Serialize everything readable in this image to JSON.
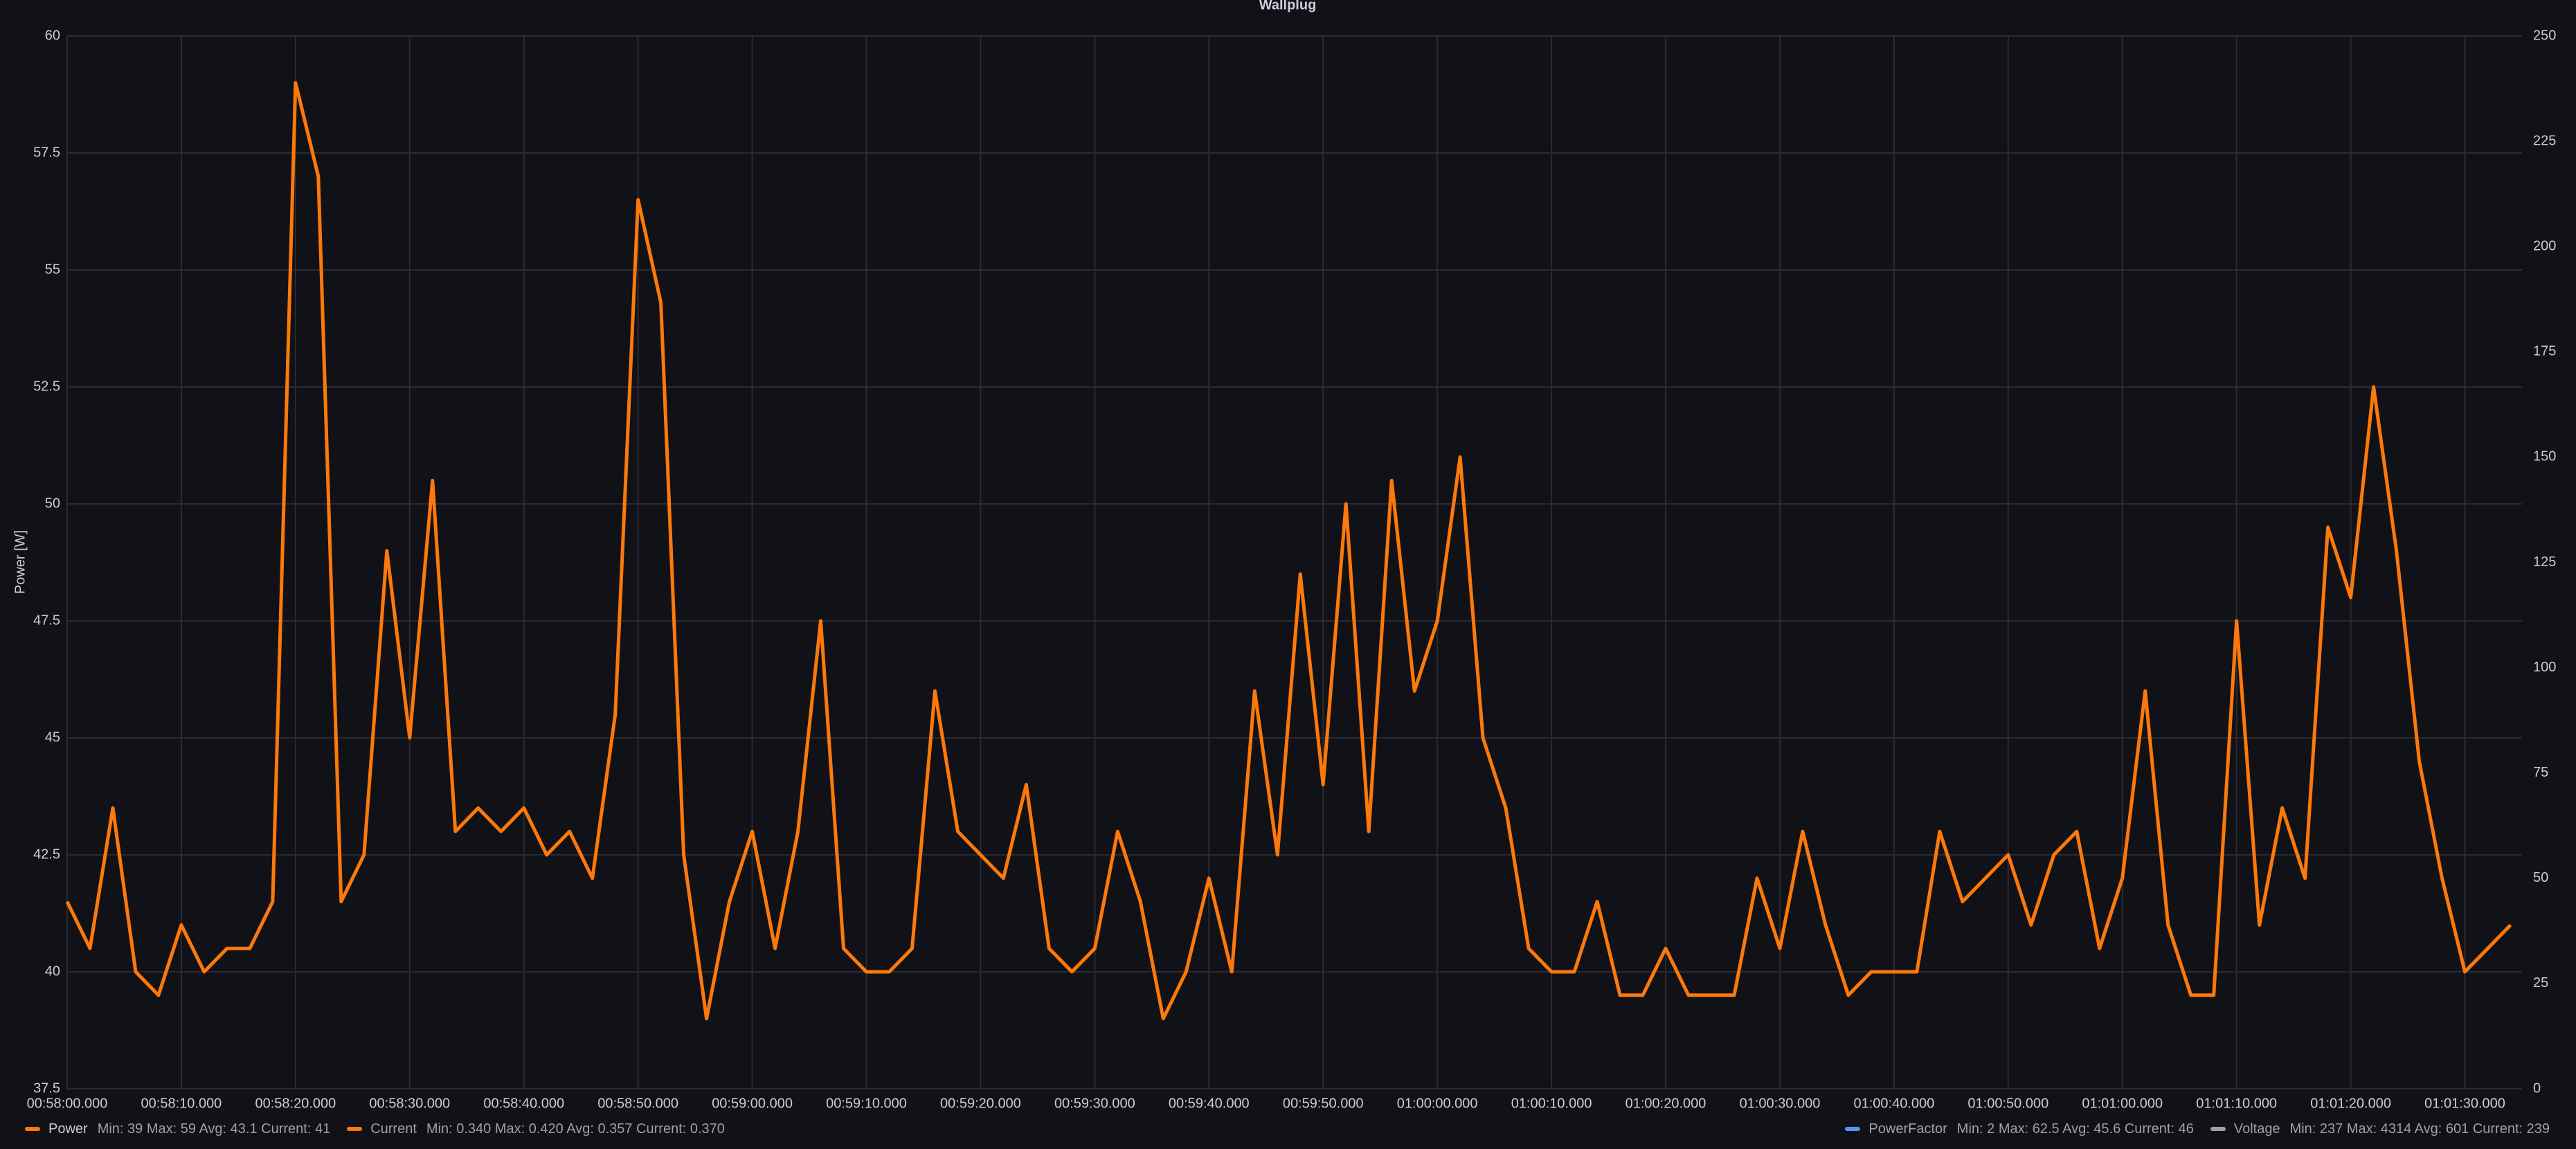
{
  "chart_data": {
    "type": "line",
    "title": "Wallplug",
    "ylabel": "Power [W]",
    "x": [
      "00:58:00.000",
      "00:58:02.000",
      "00:58:04.000",
      "00:58:06.000",
      "00:58:08.000",
      "00:58:10.000",
      "00:58:12.000",
      "00:58:14.000",
      "00:58:16.000",
      "00:58:18.000",
      "00:58:20.000",
      "00:58:22.000",
      "00:58:24.000",
      "00:58:26.000",
      "00:58:28.000",
      "00:58:30.000",
      "00:58:32.000",
      "00:58:34.000",
      "00:58:36.000",
      "00:58:38.000",
      "00:58:40.000",
      "00:58:42.000",
      "00:58:44.000",
      "00:58:46.000",
      "00:58:48.000",
      "00:58:50.000",
      "00:58:52.000",
      "00:58:54.000",
      "00:58:56.000",
      "00:58:58.000",
      "00:59:00.000",
      "00:59:02.000",
      "00:59:04.000",
      "00:59:06.000",
      "00:59:08.000",
      "00:59:10.000",
      "00:59:12.000",
      "00:59:14.000",
      "00:59:16.000",
      "00:59:18.000",
      "00:59:20.000",
      "00:59:22.000",
      "00:59:24.000",
      "00:59:26.000",
      "00:59:28.000",
      "00:59:30.000",
      "00:59:32.000",
      "00:59:34.000",
      "00:59:36.000",
      "00:59:38.000",
      "00:59:40.000",
      "00:59:42.000",
      "00:59:44.000",
      "00:59:46.000",
      "00:59:48.000",
      "00:59:50.000",
      "00:59:52.000",
      "00:59:54.000",
      "00:59:56.000",
      "00:59:58.000",
      "01:00:00.000",
      "01:00:02.000",
      "01:00:04.000",
      "01:00:06.000",
      "01:00:08.000",
      "01:00:10.000",
      "01:00:12.000",
      "01:00:14.000",
      "01:00:16.000",
      "01:00:18.000",
      "01:00:20.000",
      "01:00:22.000",
      "01:00:24.000",
      "01:00:26.000",
      "01:00:28.000",
      "01:00:30.000",
      "01:00:32.000",
      "01:00:34.000",
      "01:00:36.000",
      "01:00:38.000",
      "01:00:40.000",
      "01:00:42.000",
      "01:00:44.000",
      "01:00:46.000",
      "01:00:48.000",
      "01:00:50.000",
      "01:00:52.000",
      "01:00:54.000",
      "01:00:56.000",
      "01:00:58.000",
      "01:01:00.000",
      "01:01:02.000",
      "01:01:04.000",
      "01:01:06.000",
      "01:01:08.000",
      "01:01:10.000",
      "01:01:12.000",
      "01:01:14.000",
      "01:01:16.000",
      "01:01:18.000",
      "01:01:20.000",
      "01:01:22.000",
      "01:01:24.000",
      "01:01:26.000",
      "01:01:28.000",
      "01:01:30.000",
      "01:01:32.000",
      "01:01:34.000"
    ],
    "series": [
      {
        "name": "Power",
        "color": "#ff780a",
        "values": [
          41.5,
          40.5,
          43.5,
          40,
          39.5,
          41,
          40,
          40.5,
          40.5,
          41.5,
          59,
          57,
          41.5,
          42.5,
          49,
          45,
          50.5,
          43,
          43.5,
          43,
          43.5,
          42.5,
          43,
          42,
          45.5,
          56.5,
          54.3,
          42.5,
          39,
          41.5,
          43,
          40.5,
          43,
          47.5,
          40.5,
          40,
          40,
          40.5,
          46,
          43,
          42.5,
          42,
          44,
          40.5,
          40,
          40.5,
          43,
          41.5,
          39,
          40,
          42,
          40,
          46,
          42.5,
          48.5,
          44,
          50,
          43,
          50.5,
          46,
          47.5,
          51,
          45,
          43.5,
          40.5,
          40,
          40,
          41.5,
          39.5,
          39.5,
          40.5,
          39.5,
          39.5,
          39.5,
          42,
          40.5,
          43,
          41,
          39.5,
          40,
          40,
          40,
          43,
          41.5,
          42,
          42.5,
          41,
          42.5,
          43,
          40.5,
          42,
          46,
          41,
          39.5,
          39.5,
          47.5,
          41,
          43.5,
          42,
          49.5,
          48,
          52.5,
          49,
          44.5,
          42,
          40,
          40.5,
          41
        ]
      }
    ],
    "xlim": [
      "00:58:00.000",
      "01:01:35.000"
    ],
    "xticks": [
      "00:58:00.000",
      "00:58:10.000",
      "00:58:20.000",
      "00:58:30.000",
      "00:58:40.000",
      "00:58:50.000",
      "00:59:00.000",
      "00:59:10.000",
      "00:59:20.000",
      "00:59:30.000",
      "00:59:40.000",
      "00:59:50.000",
      "01:00:00.000",
      "01:00:10.000",
      "01:00:20.000",
      "01:00:30.000",
      "01:00:40.000",
      "01:00:50.000",
      "01:01:00.000",
      "01:01:10.000",
      "01:01:20.000",
      "01:01:30.000"
    ],
    "ylim": [
      37.5,
      60
    ],
    "yticks": [
      37.5,
      40,
      42.5,
      45,
      47.5,
      50,
      52.5,
      55,
      57.5,
      60
    ],
    "y2lim": [
      0,
      250
    ],
    "y2ticks": [
      0,
      25,
      50,
      75,
      100,
      125,
      150,
      175,
      200,
      225,
      250
    ],
    "grid": true,
    "legend": [
      {
        "name": "Power",
        "color": "#ff780a",
        "stats": "Min: 39  Max: 59  Avg: 43.1  Current: 41",
        "side": "left"
      },
      {
        "name": "Current",
        "color": "#ff780a",
        "stats": "Min: 0.340  Max: 0.420  Avg: 0.357  Current: 0.370",
        "side": "left"
      },
      {
        "name": "PowerFactor",
        "color": "#5794f2",
        "stats": "Min: 2  Max: 62.5  Avg: 45.6  Current: 46",
        "side": "right"
      },
      {
        "name": "Voltage",
        "color": "#9fa0a8",
        "stats": "Min: 237  Max: 4314  Avg: 601  Current: 239",
        "side": "right"
      }
    ]
  }
}
